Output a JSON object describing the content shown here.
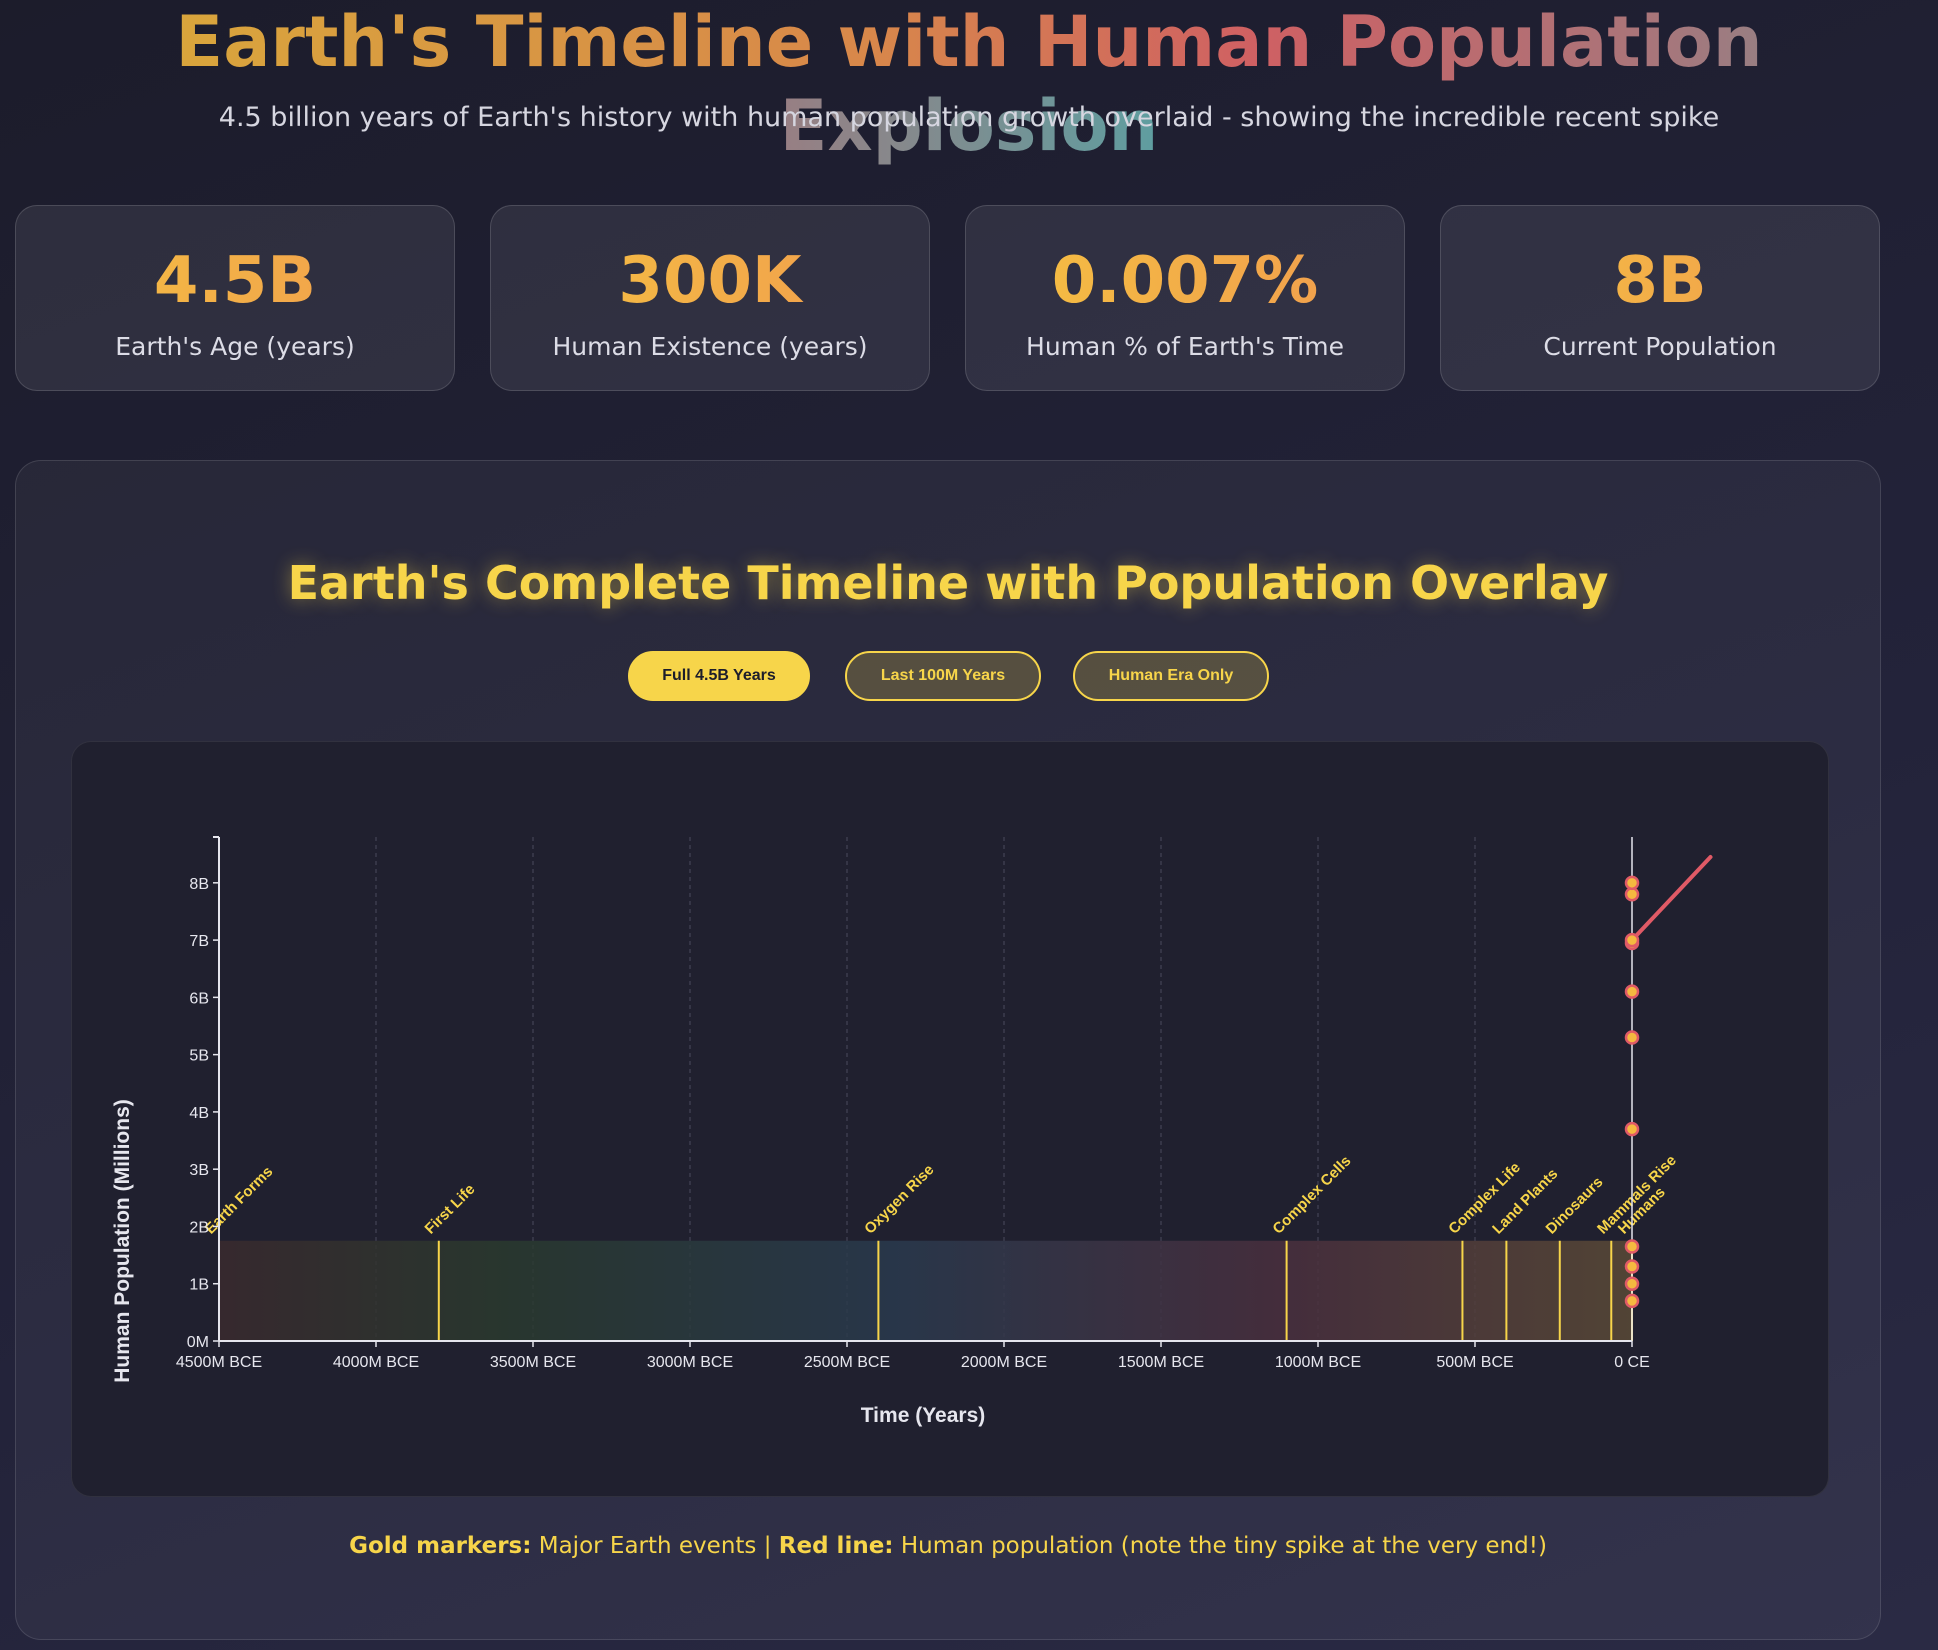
{
  "header": {
    "title": "Earth's Timeline with Human Population Explosion",
    "subtitle": "4.5 billion years of Earth's history with human population growth overlaid - showing the incredible recent spike"
  },
  "stats": [
    {
      "value": "4.5B",
      "label": "Earth's Age (years)"
    },
    {
      "value": "300K",
      "label": "Human Existence (years)"
    },
    {
      "value": "0.007%",
      "label": "Human % of Earth's Time"
    },
    {
      "value": "8B",
      "label": "Current Population"
    }
  ],
  "panel": {
    "title": "Earth's Complete Timeline with Population Overlay",
    "buttons": [
      {
        "label": "Full 4.5B Years",
        "active": true
      },
      {
        "label": "Last 100M Years",
        "active": false
      },
      {
        "label": "Human Era Only",
        "active": false
      }
    ],
    "footnote": {
      "gold_label": "Gold markers:",
      "gold_text": " Major Earth events | ",
      "red_label": "Red line:",
      "red_text": " Human population (note the tiny spike at the very end!)"
    }
  },
  "colors": {
    "gold": "#f7d54a",
    "red": "#e05a66",
    "marker_fill": "#f5b940"
  },
  "chart_data": {
    "type": "line",
    "xlabel": "Time (Years)",
    "ylabel": "Human Population (Millions)",
    "xlim": [
      -4500,
      0
    ],
    "ylim": [
      0,
      8800
    ],
    "x_ticks": [
      -4500,
      -4000,
      -3500,
      -3000,
      -2500,
      -2000,
      -1500,
      -1000,
      -500,
      0
    ],
    "x_tick_labels": [
      "4500M BCE",
      "4000M BCE",
      "3500M BCE",
      "3000M BCE",
      "2500M BCE",
      "2000M BCE",
      "1500M BCE",
      "1000M BCE",
      "500M BCE",
      "0 CE"
    ],
    "y_ticks": [
      0,
      1000,
      2000,
      3000,
      4000,
      5000,
      6000,
      7000,
      8000
    ],
    "y_tick_labels": [
      "0M",
      "1B",
      "2B",
      "3B",
      "4B",
      "5B",
      "6B",
      "7B",
      "8B"
    ],
    "grid": true,
    "event_band_height": 1750,
    "events": [
      {
        "name": "Earth Forms",
        "x": -4500
      },
      {
        "name": "First Life",
        "x": -3800
      },
      {
        "name": "Oxygen Rise",
        "x": -2400
      },
      {
        "name": "Complex Cells",
        "x": -1100
      },
      {
        "name": "Complex Life",
        "x": -540
      },
      {
        "name": "Land Plants",
        "x": -400
      },
      {
        "name": "Dinosaurs",
        "x": -230
      },
      {
        "name": "Mammals Rise",
        "x": -66
      },
      {
        "name": "Humans",
        "x": 0
      }
    ],
    "population_series": {
      "name": "Human population",
      "x": [
        0,
        0,
        0,
        0,
        0,
        0,
        0,
        0,
        0,
        0,
        0
      ],
      "values": [
        700,
        1000,
        1300,
        1650,
        3700,
        5300,
        6100,
        6950,
        7800,
        8000,
        7000
      ]
    },
    "population_trend": {
      "x": [
        0,
        250
      ],
      "values": [
        7000,
        8450
      ]
    }
  }
}
